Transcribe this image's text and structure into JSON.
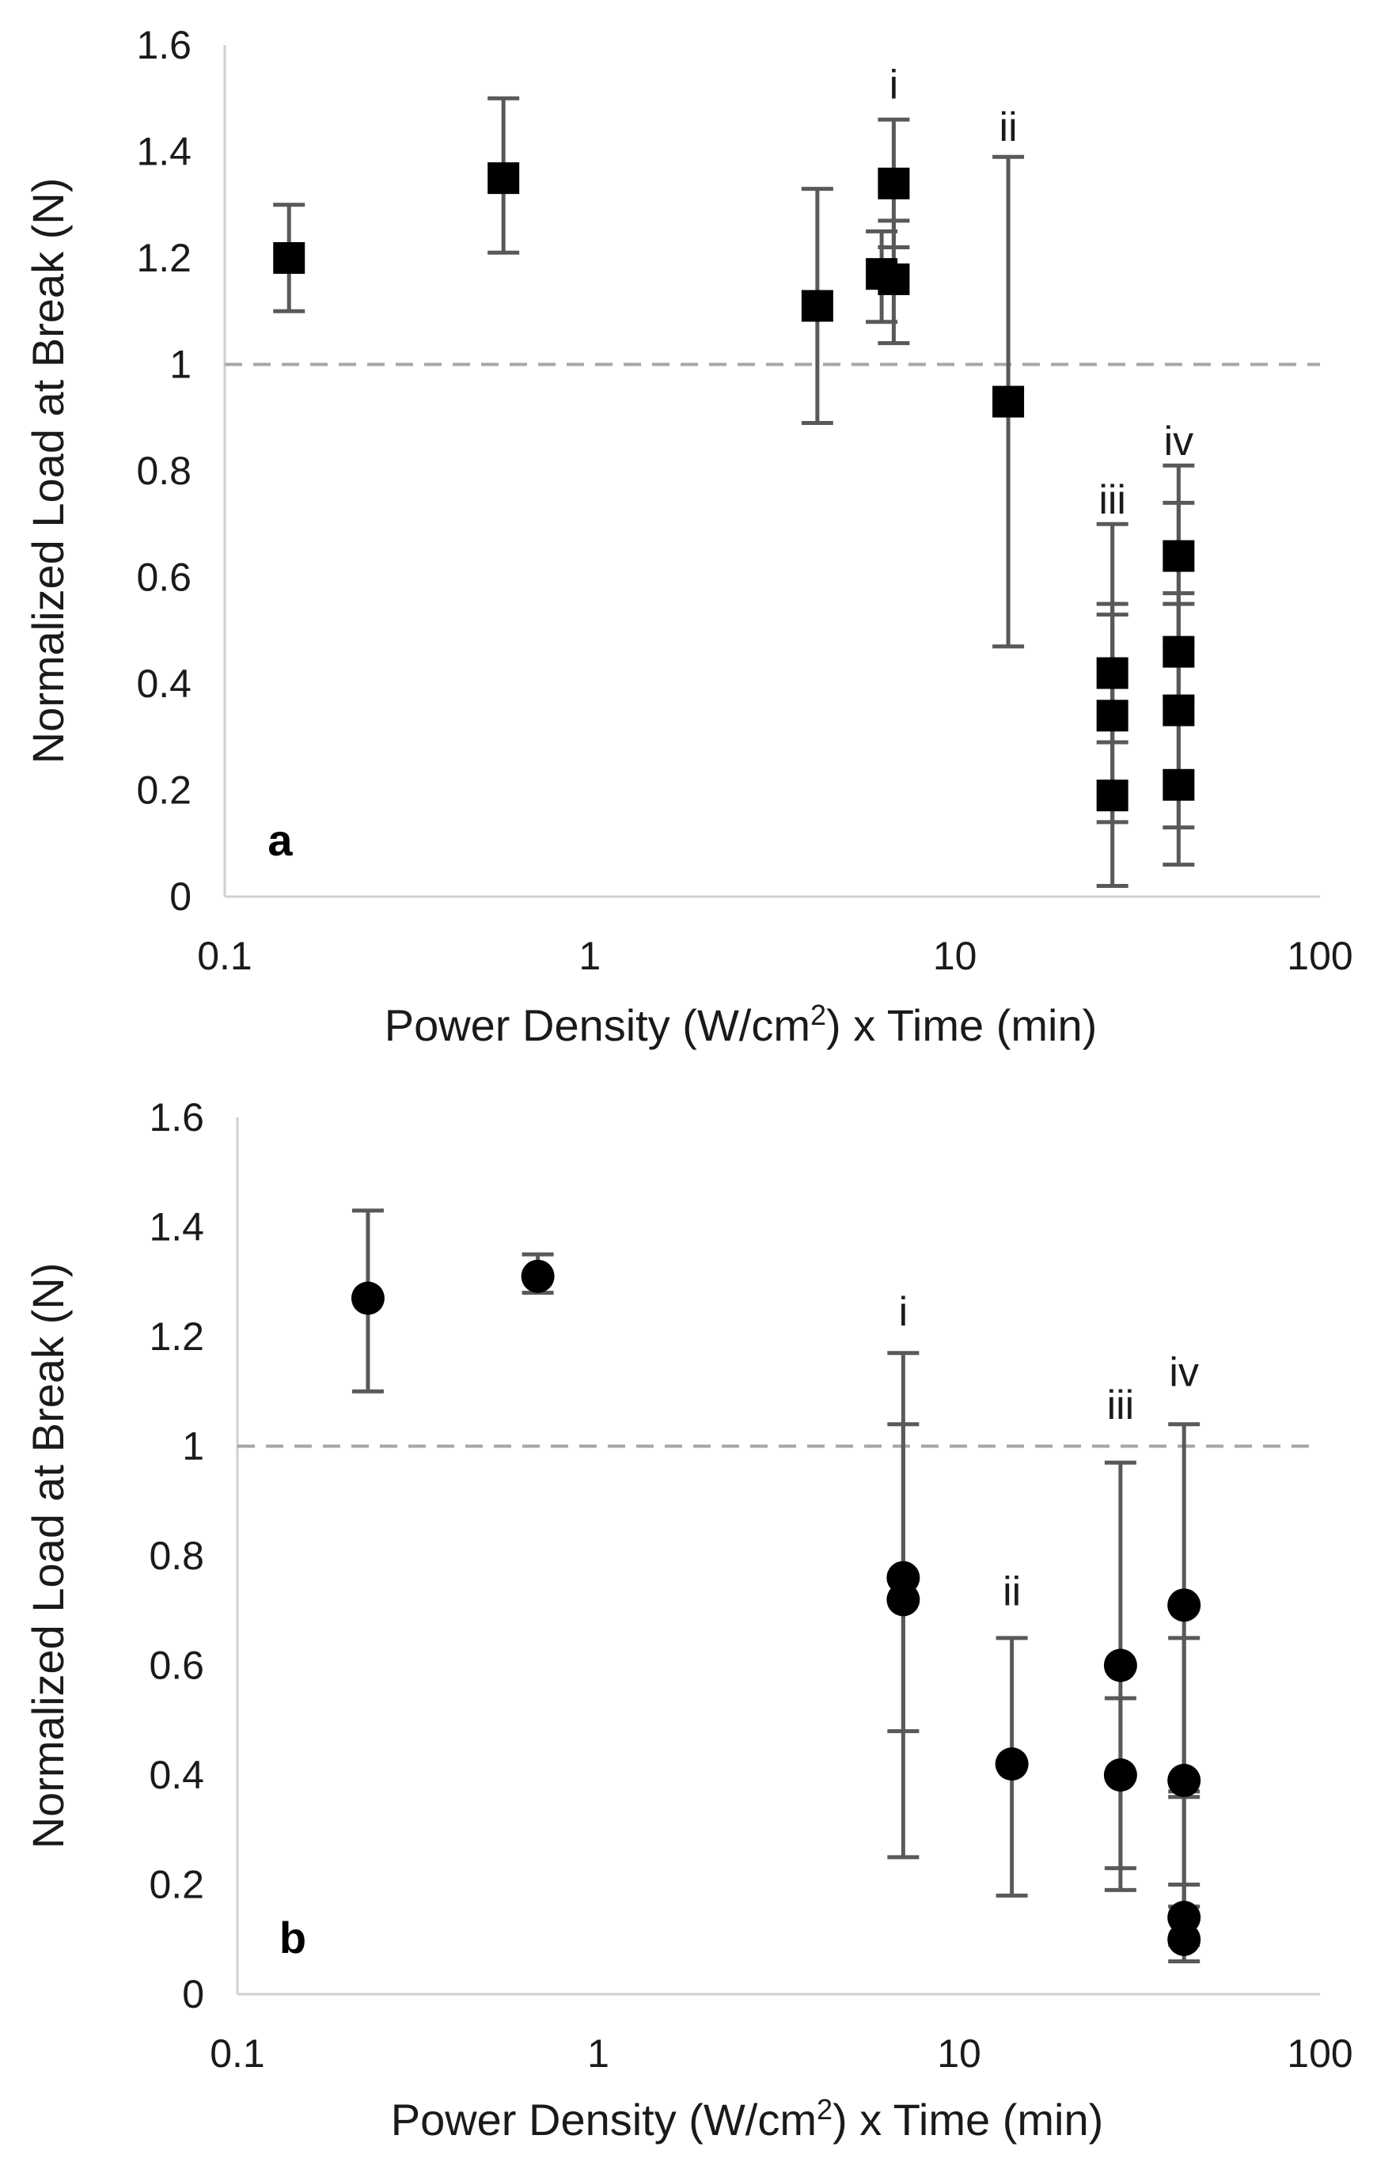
{
  "chart_data": [
    {
      "type": "scatter",
      "panel_label": "a",
      "marker": "square",
      "xscale": "log",
      "xlim": [
        0.1,
        100
      ],
      "ylim": [
        0,
        1.6
      ],
      "xticks": [
        0.1,
        1,
        10,
        100
      ],
      "xtick_labels": [
        "0.1",
        "1",
        "10",
        "100"
      ],
      "yticks": [
        0,
        0.2,
        0.4,
        0.6,
        0.8,
        1,
        1.2,
        1.4,
        1.6
      ],
      "ytick_labels": [
        "0",
        "0.2",
        "0.4",
        "0.6",
        "0.8",
        "1",
        "1.2",
        "1.4",
        "1.6"
      ],
      "xlabel": {
        "pre": "Power Density (W/cm",
        "sup": "2",
        "post": ")  x  Time (min)"
      },
      "ylabel": "Normalized Load at Break (N)",
      "reference_line": 1,
      "points": [
        {
          "x": 0.15,
          "y": 1.2,
          "err_low": 1.1,
          "err_high": 1.3
        },
        {
          "x": 0.58,
          "y": 1.35,
          "err_low": 1.21,
          "err_high": 1.5
        },
        {
          "x": 4.2,
          "y": 1.11,
          "err_low": 0.89,
          "err_high": 1.33
        },
        {
          "x": 6.3,
          "y": 1.17,
          "err_low": 1.08,
          "err_high": 1.25
        },
        {
          "x": 6.8,
          "y": 1.34,
          "err_low": 1.22,
          "err_high": 1.46
        },
        {
          "x": 6.8,
          "y": 1.16,
          "err_low": 1.04,
          "err_high": 1.27
        },
        {
          "x": 14,
          "y": 0.93,
          "err_low": 0.47,
          "err_high": 1.39
        },
        {
          "x": 27,
          "y": 0.42,
          "err_low": 0.29,
          "err_high": 0.55
        },
        {
          "x": 27,
          "y": 0.34,
          "err_low": 0.14,
          "err_high": 0.53
        },
        {
          "x": 27,
          "y": 0.19,
          "err_low": 0.02,
          "err_high": 0.7
        },
        {
          "x": 41,
          "y": 0.64,
          "err_low": 0.47,
          "err_high": 0.81
        },
        {
          "x": 41,
          "y": 0.46,
          "err_low": 0.37,
          "err_high": 0.55
        },
        {
          "x": 41,
          "y": 0.35,
          "err_low": 0.13,
          "err_high": 0.57
        },
        {
          "x": 41,
          "y": 0.21,
          "err_low": 0.06,
          "err_high": 0.74
        }
      ],
      "annotations": [
        {
          "text": "i",
          "x": 6.8,
          "y": 1.5
        },
        {
          "text": "ii",
          "x": 14,
          "y": 1.42
        },
        {
          "text": "iii",
          "x": 27,
          "y": 0.72
        },
        {
          "text": "iv",
          "x": 41,
          "y": 0.83
        }
      ]
    },
    {
      "type": "scatter",
      "panel_label": "b",
      "marker": "circle",
      "xscale": "log",
      "xlim": [
        0.1,
        100
      ],
      "ylim": [
        0,
        1.6
      ],
      "xticks": [
        0.1,
        1,
        10,
        100
      ],
      "xtick_labels": [
        "0.1",
        "1",
        "10",
        "100"
      ],
      "yticks": [
        0,
        0.2,
        0.4,
        0.6,
        0.8,
        1,
        1.2,
        1.4,
        1.6
      ],
      "ytick_labels": [
        "0",
        "0.2",
        "0.4",
        "0.6",
        "0.8",
        "1",
        "1.2",
        "1.4",
        "1.6"
      ],
      "xlabel": {
        "pre": "Power Density (W/cm",
        "sup": "2",
        "post": ")  x Time (min)"
      },
      "ylabel": "Normalized Load at Break (N)",
      "reference_line": 1,
      "points": [
        {
          "x": 0.23,
          "y": 1.27,
          "err_low": 1.1,
          "err_high": 1.43
        },
        {
          "x": 0.68,
          "y": 1.31,
          "err_low": 1.28,
          "err_high": 1.35
        },
        {
          "x": 7,
          "y": 0.76,
          "err_low": 0.48,
          "err_high": 1.04
        },
        {
          "x": 7,
          "y": 0.72,
          "err_low": 0.25,
          "err_high": 1.17
        },
        {
          "x": 14,
          "y": 0.42,
          "err_low": 0.18,
          "err_high": 0.65
        },
        {
          "x": 28,
          "y": 0.6,
          "err_low": 0.23,
          "err_high": 0.97
        },
        {
          "x": 28,
          "y": 0.4,
          "err_low": 0.19,
          "err_high": 0.54
        },
        {
          "x": 42,
          "y": 0.71,
          "err_low": 0.36,
          "err_high": 1.04
        },
        {
          "x": 42,
          "y": 0.39,
          "err_low": 0.16,
          "err_high": 0.65
        },
        {
          "x": 42,
          "y": 0.14,
          "err_low": 0.09,
          "err_high": 0.2
        },
        {
          "x": 42,
          "y": 0.1,
          "err_low": 0.06,
          "err_high": 0.37
        }
      ],
      "annotations": [
        {
          "text": "i",
          "x": 7,
          "y": 1.22
        },
        {
          "text": "ii",
          "x": 14,
          "y": 0.71
        },
        {
          "text": "iii",
          "x": 28,
          "y": 1.05
        },
        {
          "text": "iv",
          "x": 42,
          "y": 1.11
        }
      ]
    }
  ],
  "colors": {
    "marker": "#000000",
    "error_bar": "#595959",
    "axis": "#d0d0d0",
    "reference_line": "#a6a6a6",
    "text": "#1a1a1a"
  }
}
